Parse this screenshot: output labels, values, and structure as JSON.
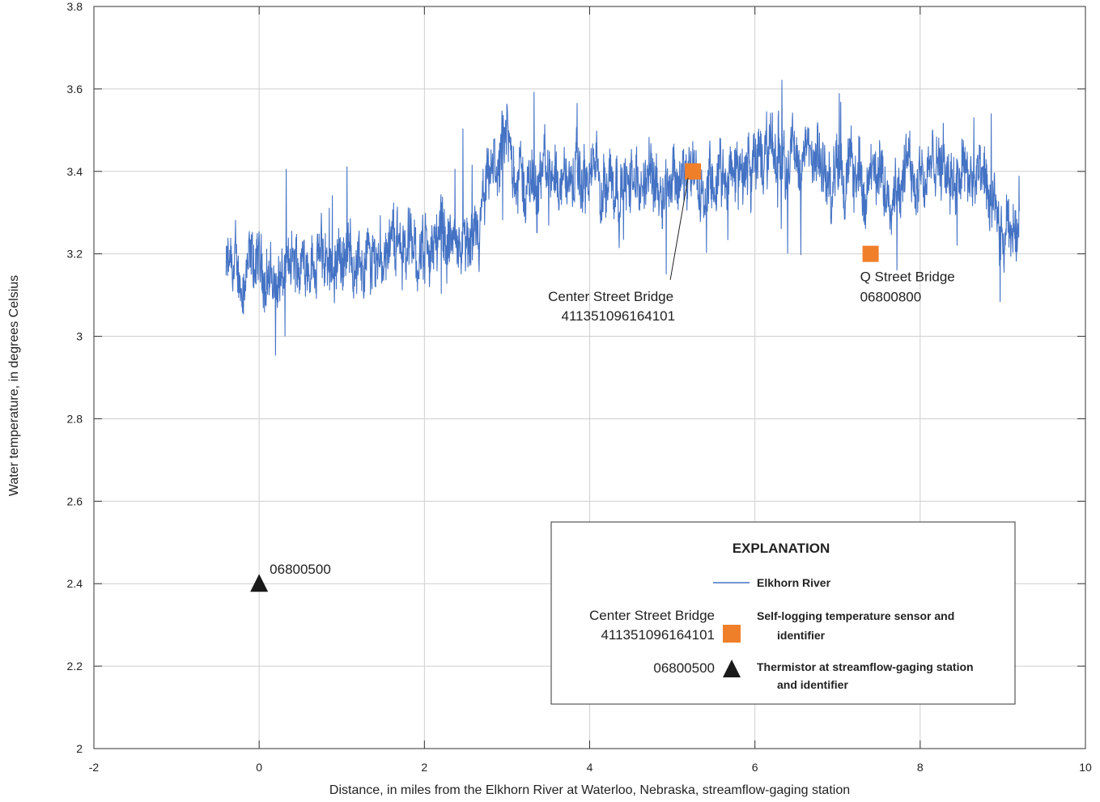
{
  "chart_data": {
    "type": "line",
    "xlabel": "Distance, in miles from the Elkhorn River at Waterloo, Nebraska, streamflow-gaging station",
    "ylabel": "Water temperature, in degrees Celsius",
    "xlim": [
      -2,
      10
    ],
    "ylim": [
      2,
      3.8
    ],
    "x_ticks": [
      "-2",
      "0",
      "2",
      "4",
      "6",
      "8",
      "10"
    ],
    "y_ticks": [
      "2",
      "2.2",
      "2.4",
      "2.6",
      "2.8",
      "3",
      "3.2",
      "3.4",
      "3.6",
      "3.8"
    ],
    "grid": true,
    "series": [
      {
        "name": "Elkhorn River",
        "color": "#4472c4",
        "profile": [
          [
            -0.4,
            3.16
          ],
          [
            -0.2,
            3.14
          ],
          [
            0.0,
            3.17
          ],
          [
            0.2,
            3.13
          ],
          [
            0.4,
            3.16
          ],
          [
            0.6,
            3.2
          ],
          [
            0.8,
            3.18
          ],
          [
            1.0,
            3.2
          ],
          [
            1.2,
            3.18
          ],
          [
            1.4,
            3.19
          ],
          [
            1.6,
            3.24
          ],
          [
            1.8,
            3.22
          ],
          [
            2.0,
            3.2
          ],
          [
            2.2,
            3.25
          ],
          [
            2.4,
            3.22
          ],
          [
            2.6,
            3.18
          ],
          [
            2.8,
            3.38
          ],
          [
            3.0,
            3.46
          ],
          [
            3.2,
            3.36
          ],
          [
            3.4,
            3.39
          ],
          [
            3.6,
            3.4
          ],
          [
            3.8,
            3.37
          ],
          [
            4.0,
            3.38
          ],
          [
            4.2,
            3.4
          ],
          [
            4.4,
            3.37
          ],
          [
            4.6,
            3.36
          ],
          [
            4.8,
            3.39
          ],
          [
            5.0,
            3.4
          ],
          [
            5.2,
            3.38
          ],
          [
            5.4,
            3.34
          ],
          [
            5.6,
            3.37
          ],
          [
            5.8,
            3.4
          ],
          [
            6.0,
            3.42
          ],
          [
            6.2,
            3.44
          ],
          [
            6.4,
            3.45
          ],
          [
            6.6,
            3.43
          ],
          [
            6.8,
            3.4
          ],
          [
            7.0,
            3.38
          ],
          [
            7.2,
            3.4
          ],
          [
            7.4,
            3.36
          ],
          [
            7.6,
            3.38
          ],
          [
            7.8,
            3.39
          ],
          [
            8.0,
            3.41
          ],
          [
            8.2,
            3.4
          ],
          [
            8.4,
            3.42
          ],
          [
            8.6,
            3.4
          ],
          [
            8.8,
            3.35
          ],
          [
            9.0,
            3.2
          ],
          [
            9.2,
            3.3
          ]
        ],
        "noise_amplitude": 0.07,
        "observed_min": 2.87,
        "observed_max": 3.66
      }
    ],
    "points": [
      {
        "type": "self-logging-sensor",
        "name": "Center Street Bridge",
        "id": "411351096164101",
        "x": 5.25,
        "y": 3.4,
        "color": "#f07f2a"
      },
      {
        "type": "self-logging-sensor",
        "name": "Q Street Bridge",
        "id": "06800800",
        "x": 7.4,
        "y": 3.2,
        "color": "#f07f2a"
      },
      {
        "type": "thermistor",
        "name": "",
        "id": "06800500",
        "x": 0.0,
        "y": 2.4,
        "color": "#1a1a1a"
      }
    ],
    "legend": {
      "title": "EXPLANATION",
      "placement": "bottom-right",
      "line_label": "Elkhorn River",
      "sensor_label_line1": "Self-logging temperature sensor and",
      "sensor_label_line2": "identifier",
      "sensor_example_name": "Center Street Bridge",
      "sensor_example_id": "411351096164101",
      "thermistor_label_line1": "Thermistor at streamflow-gaging station",
      "thermistor_label_line2": "and identifier",
      "thermistor_example_id": "06800500"
    }
  }
}
